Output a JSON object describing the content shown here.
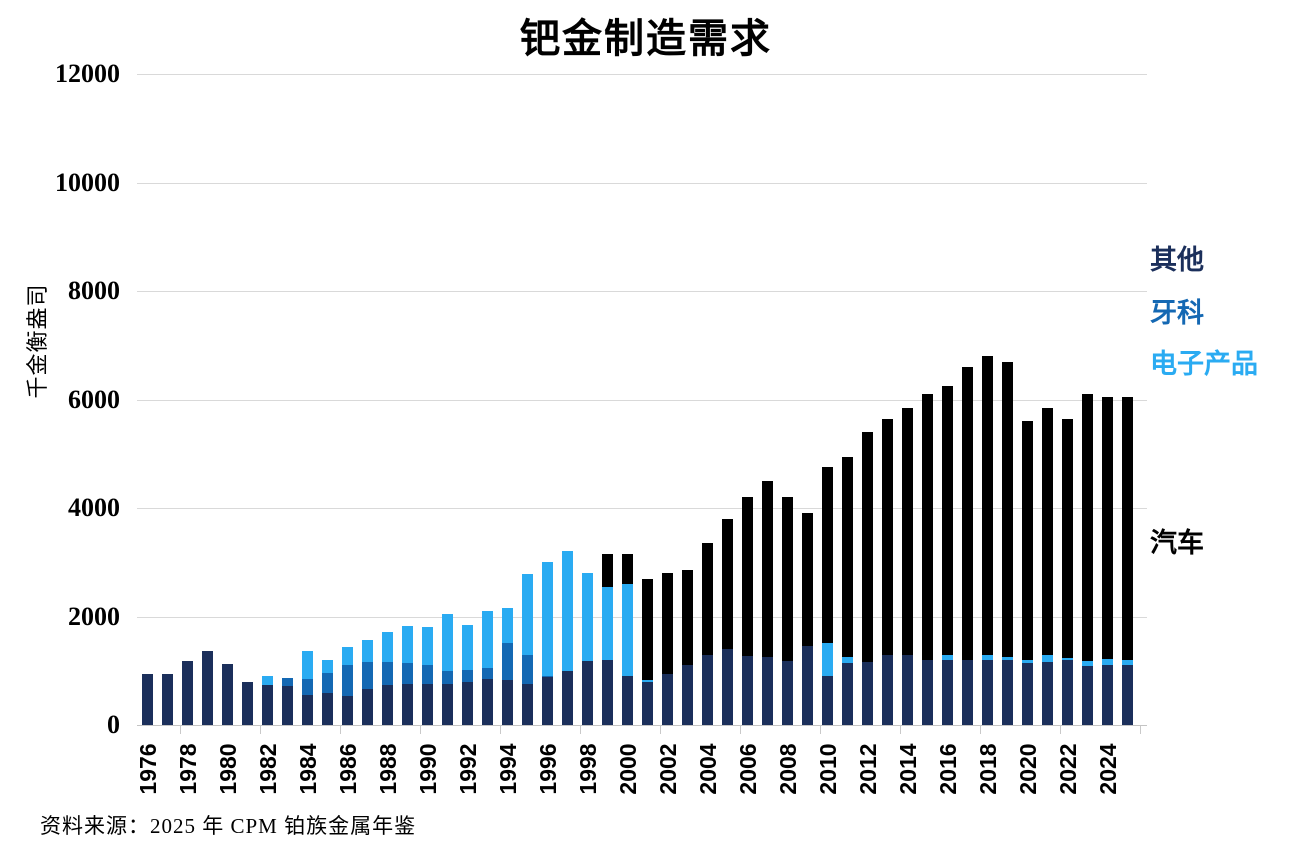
{
  "title": "钯金制造需求",
  "y_axis": {
    "label": "千金衡盎司",
    "ticks": [
      0,
      2000,
      4000,
      6000,
      8000,
      10000,
      12000
    ]
  },
  "x_axis": {
    "tick_years": [
      1976,
      1978,
      1980,
      1982,
      1984,
      1986,
      1988,
      1990,
      1992,
      1994,
      1996,
      1998,
      2000,
      2002,
      2004,
      2006,
      2008,
      2010,
      2012,
      2014,
      2016,
      2018,
      2020,
      2022,
      2024
    ]
  },
  "legend": {
    "items": [
      {
        "label": "其他",
        "color": "#1b2f5b"
      },
      {
        "label": "牙科",
        "color": "#1468b3"
      },
      {
        "label": "电子产品",
        "color": "#2aabf2"
      },
      {
        "label": "汽车",
        "color": "#000000"
      }
    ]
  },
  "source_note": "资料来源：2025 年 CPM 铂族金属年鉴",
  "chart_data": {
    "type": "bar",
    "stacked": true,
    "title": "钯金制造需求",
    "xlabel": "",
    "ylabel": "千金衡盎司",
    "ylim": [
      0,
      12000
    ],
    "grid": true,
    "legend_position": "right",
    "x": [
      1976,
      1977,
      1978,
      1979,
      1980,
      1981,
      1982,
      1983,
      1984,
      1985,
      1986,
      1987,
      1988,
      1989,
      1990,
      1991,
      1992,
      1993,
      1994,
      1995,
      1996,
      1997,
      1998,
      1999,
      2000,
      2001,
      2002,
      2003,
      2004,
      2005,
      2006,
      2007,
      2008,
      2009,
      2010,
      2011,
      2012,
      2013,
      2014,
      2015,
      2016,
      2017,
      2018,
      2019,
      2020,
      2021,
      2022,
      2023,
      2024,
      2025
    ],
    "series": [
      {
        "name": "汽车",
        "color": "#000000",
        "values": [
          140,
          110,
          185,
          200,
          140,
          165,
          185,
          230,
          360,
          340,
          370,
          400,
          430,
          470,
          420,
          460,
          500,
          600,
          800,
          1400,
          1750,
          2050,
          2700,
          3150,
          3150,
          2700,
          2800,
          2850,
          3350,
          3800,
          4200,
          4500,
          4200,
          3900,
          4750,
          4950,
          5400,
          5650,
          5850,
          6100,
          6250,
          6600,
          6800,
          6700,
          5600,
          5850,
          5650,
          6100,
          6050,
          6050
        ]
      },
      {
        "name": "电子产品",
        "color": "#2aabf2",
        "values": [
          410,
          440,
          450,
          520,
          540,
          700,
          900,
          840,
          1370,
          1200,
          1440,
          1560,
          1710,
          1820,
          1810,
          2040,
          1840,
          2100,
          2150,
          2780,
          3000,
          3200,
          2800,
          2550,
          2600,
          830,
          830,
          860,
          980,
          1050,
          1260,
          1100,
          1170,
          1100,
          1520,
          1250,
          1100,
          1050,
          1150,
          1150,
          1300,
          950,
          1300,
          1250,
          1200,
          1300,
          1230,
          1180,
          1220,
          1200
        ]
      },
      {
        "name": "牙科",
        "color": "#1468b3",
        "values": [
          410,
          400,
          550,
          780,
          540,
          600,
          650,
          860,
          840,
          960,
          1110,
          1170,
          1170,
          1140,
          1100,
          990,
          1010,
          1050,
          1520,
          1300,
          900,
          800,
          770,
          700,
          850,
          800,
          830,
          800,
          920,
          920,
          860,
          900,
          900,
          600,
          700,
          770,
          880,
          800,
          750,
          800,
          650,
          1000,
          700,
          750,
          650,
          680,
          700,
          830,
          800,
          700
        ]
      },
      {
        "name": "其他",
        "color": "#1b2f5b",
        "values": [
          950,
          950,
          1180,
          1370,
          1120,
          800,
          740,
          720,
          560,
          600,
          540,
          660,
          730,
          750,
          750,
          750,
          800,
          850,
          830,
          750,
          880,
          1000,
          1180,
          1200,
          900,
          800,
          950,
          1100,
          1300,
          1400,
          1280,
          1250,
          1180,
          1450,
          900,
          1150,
          1170,
          1300,
          1300,
          1200,
          1200,
          1200,
          1200,
          1200,
          1150,
          1170,
          1200,
          1090,
          1100,
          1100
        ]
      }
    ]
  }
}
